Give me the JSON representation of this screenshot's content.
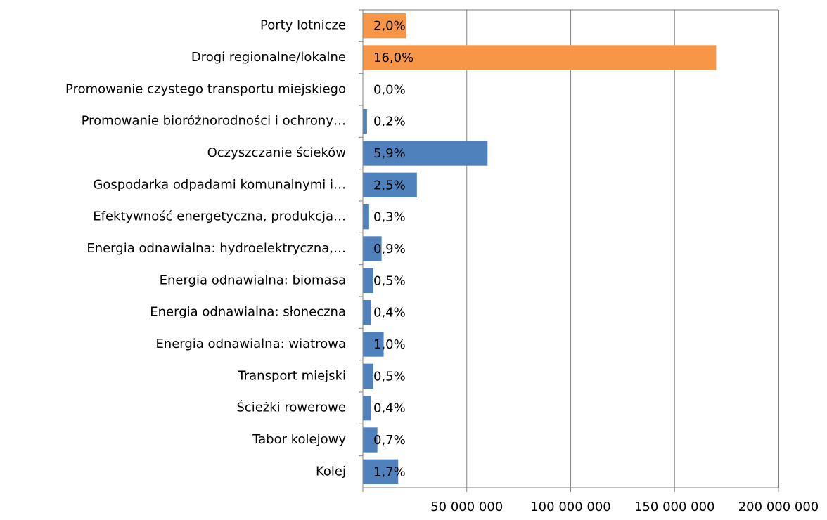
{
  "chart_data": {
    "type": "hbar",
    "categories": [
      "Porty lotnicze",
      "Drogi regionalne/lokalne",
      "Promowanie czystego transportu miejskiego",
      "Promowanie bioróżnorodności i ochrony…",
      "Oczyszczanie ścieków",
      "Gospodarka odpadami komunalnymi i…",
      "Efektywność energetyczna, produkcja…",
      "Energia odnawialna: hydroelektryczna,…",
      "Energia odnawialna: biomasa",
      "Energia odnawialna: słoneczna",
      "Energia odnawialna: wiatrowa",
      "Transport miejski",
      "Ścieżki rowerowe",
      "Tabor kolejowy",
      "Kolej"
    ],
    "values": [
      21000000,
      170000000,
      0,
      2000000,
      60000000,
      26000000,
      3000000,
      9000000,
      5000000,
      4000000,
      10000000,
      5000000,
      4000000,
      7000000,
      17000000
    ],
    "colors": [
      "#f79646",
      "#f79646",
      "#4f81bd",
      "#4f81bd",
      "#4f81bd",
      "#4f81bd",
      "#4f81bd",
      "#4f81bd",
      "#4f81bd",
      "#4f81bd",
      "#4f81bd",
      "#4f81bd",
      "#4f81bd",
      "#4f81bd",
      "#4f81bd"
    ],
    "data_labels": [
      {
        "value": 2.0,
        "label": "2,0%"
      },
      {
        "value": 16.0,
        "label": "16,0%"
      },
      {
        "value": 0.0,
        "label": "0,0%"
      },
      {
        "value": 0.2,
        "label": "0,2%"
      },
      {
        "value": 5.9,
        "label": "5,9%"
      },
      {
        "value": 2.5,
        "label": "2,5%"
      },
      {
        "value": 0.3,
        "label": "0,3%"
      },
      {
        "value": 0.9,
        "label": "0,9%"
      },
      {
        "value": 0.5,
        "label": "0,5%"
      },
      {
        "value": 0.4,
        "label": "0,4%"
      },
      {
        "value": 1.0,
        "label": "1,0%"
      },
      {
        "value": 0.5,
        "label": "0,5%"
      },
      {
        "value": 0.4,
        "label": "0,4%"
      },
      {
        "value": 0.7,
        "label": "0,7%"
      },
      {
        "value": 1.7,
        "label": "1,7%"
      }
    ],
    "xlim": [
      0,
      200000000
    ],
    "xticks": [
      {
        "value": 50000000,
        "label": "50 000 000"
      },
      {
        "value": 100000000,
        "label": "100 000 000"
      },
      {
        "value": 150000000,
        "label": "150 000 000"
      },
      {
        "value": 200000000,
        "label": "200 000 000"
      }
    ],
    "grid": true
  }
}
